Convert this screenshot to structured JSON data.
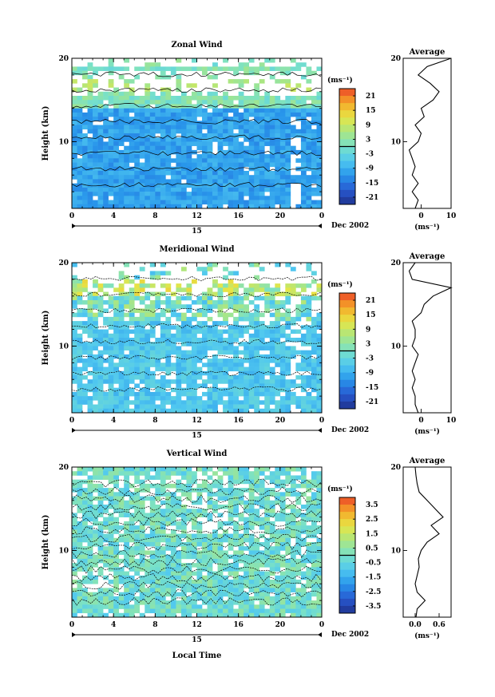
{
  "figure": {
    "xaxis_title": "Local Time",
    "date_label": "Dec 2002",
    "day_label": "15"
  },
  "chart_data": [
    {
      "type": "heatmap",
      "title": "Zonal Wind",
      "ylabel": "Height (km)",
      "xlabel": "Local Time",
      "x_ticks": [
        "0",
        "4",
        "8",
        "12",
        "16",
        "20",
        "0"
      ],
      "y_ticks": [
        "10",
        "20"
      ],
      "xlim": [
        0,
        24
      ],
      "ylim": [
        2,
        20
      ],
      "colorbar": {
        "unit": "(ms⁻¹)",
        "ticks": [
          "21",
          "15",
          "9",
          "3",
          "-3",
          "-9",
          "-15",
          "-21"
        ],
        "range": [
          -24,
          24
        ],
        "zero_line": true
      },
      "average_profile": {
        "title": "Average",
        "xlabel": "(ms⁻¹)",
        "x_ticks": [
          "0",
          "10"
        ],
        "xlim": [
          -6,
          10
        ],
        "y_ticks": [
          "10",
          "20"
        ],
        "heights": [
          2,
          3,
          4,
          5,
          6,
          7,
          8,
          9,
          10,
          11,
          12,
          13,
          14,
          15,
          16,
          17,
          18,
          19,
          20
        ],
        "values": [
          -2,
          -1,
          -3,
          -1,
          -3,
          -2,
          -3,
          -4,
          -1,
          0,
          -2,
          1,
          0,
          4,
          6,
          3,
          -1,
          2,
          10
        ]
      }
    },
    {
      "type": "heatmap",
      "title": "Meridional Wind",
      "ylabel": "Height (km)",
      "xlabel": "Local Time",
      "x_ticks": [
        "0",
        "4",
        "8",
        "12",
        "16",
        "20",
        "0"
      ],
      "y_ticks": [
        "10",
        "20"
      ],
      "xlim": [
        0,
        24
      ],
      "ylim": [
        2,
        20
      ],
      "colorbar": {
        "unit": "(ms⁻¹)",
        "ticks": [
          "21",
          "15",
          "9",
          "3",
          "-3",
          "-9",
          "-15",
          "-21"
        ],
        "range": [
          -24,
          24
        ],
        "zero_line": true
      },
      "average_profile": {
        "title": "Average",
        "xlabel": "(ms⁻¹)",
        "x_ticks": [
          "0",
          "10"
        ],
        "xlim": [
          -6,
          10
        ],
        "y_ticks": [
          "10",
          "20"
        ],
        "heights": [
          2,
          3,
          4,
          5,
          6,
          7,
          8,
          9,
          10,
          11,
          12,
          13,
          14,
          15,
          16,
          17,
          18,
          19,
          20
        ],
        "values": [
          -1,
          -2,
          -2,
          -3,
          -2,
          -3,
          -2,
          -1,
          -3,
          -2,
          -2,
          -3,
          0,
          1,
          4,
          10,
          -3,
          -4,
          -2
        ]
      }
    },
    {
      "type": "heatmap",
      "title": "Vertical Wind",
      "ylabel": "Height (km)",
      "xlabel": "Local Time",
      "x_ticks": [
        "0",
        "4",
        "8",
        "12",
        "16",
        "20",
        "0"
      ],
      "y_ticks": [
        "10",
        "20"
      ],
      "xlim": [
        0,
        24
      ],
      "ylim": [
        2,
        20
      ],
      "colorbar": {
        "unit": "(ms⁻¹)",
        "ticks": [
          "3.5",
          "2.5",
          "1.5",
          "0.5",
          "-0.5",
          "-1.5",
          "-2.5",
          "-3.5"
        ],
        "range": [
          -4,
          4
        ],
        "zero_line": true
      },
      "average_profile": {
        "title": "Average",
        "xlabel": "(ms⁻¹)",
        "x_ticks": [
          "0.0",
          "0.6"
        ],
        "xlim": [
          -0.3,
          0.9
        ],
        "y_ticks": [
          "10",
          "20"
        ],
        "heights": [
          2,
          3,
          4,
          5,
          6,
          7,
          8,
          9,
          10,
          11,
          12,
          13,
          14,
          15,
          16,
          17,
          18,
          19,
          20
        ],
        "values": [
          0.02,
          0.05,
          0.25,
          0.05,
          0.0,
          0.05,
          0.1,
          0.08,
          0.15,
          0.3,
          0.6,
          0.4,
          0.7,
          0.5,
          0.3,
          0.1,
          0.05,
          0.02,
          0.0
        ]
      }
    }
  ]
}
